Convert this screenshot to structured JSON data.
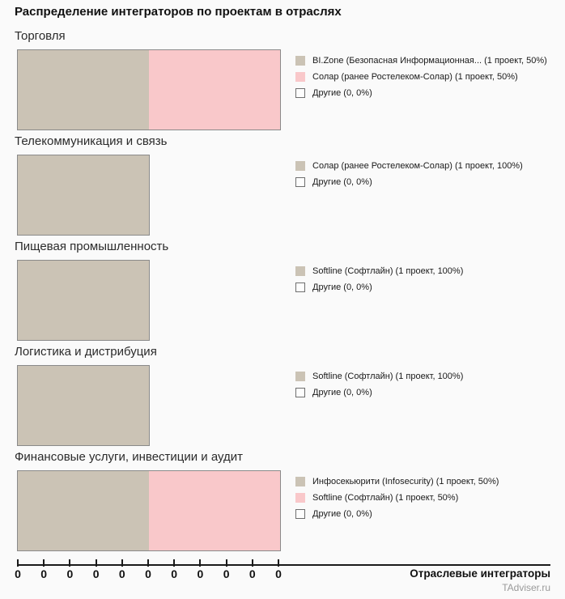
{
  "title": "Распределение интеграторов по проектам в отраслях",
  "axis": {
    "label": "Отраслевые интеграторы"
  },
  "watermark": "TAdviser.ru",
  "colors": {
    "tan": "#cbc3b5",
    "pink": "#f9c8ca",
    "other": "#fdfdfd",
    "bar_border": "#8a8a8a",
    "background": "#fafafa"
  },
  "chart_data": {
    "type": "bar",
    "orientation": "horizontal-stacked",
    "title": "Распределение интеграторов по проектам в отраслях",
    "xlabel": "Отраслевые интеграторы",
    "xlim": [
      0,
      2
    ],
    "x_tick_labels": [
      "0",
      "0",
      "0",
      "0",
      "0",
      "0",
      "0",
      "0",
      "0",
      "0",
      "0"
    ],
    "grid": false,
    "legend_position": "right-of-each-bar",
    "sections": [
      {
        "category": "Торговля",
        "segments": [
          {
            "name": "BI.Zone (Безопасная Информационная...",
            "projects": 1,
            "percent": 50,
            "color_key": "tan",
            "legend": "BI.Zone (Безопасная Информационная... (1 проект, 50%)"
          },
          {
            "name": "Солар (ранее Ростелеком-Солар)",
            "projects": 1,
            "percent": 50,
            "color_key": "pink",
            "legend": "Солар (ранее Ростелеком-Солар) (1 проект, 50%)"
          },
          {
            "name": "Другие",
            "projects": 0,
            "percent": 0,
            "color_key": "other",
            "legend": "Другие (0, 0%)"
          }
        ]
      },
      {
        "category": "Телекоммуникация и связь",
        "segments": [
          {
            "name": "Солар (ранее Ростелеком-Солар)",
            "projects": 1,
            "percent": 100,
            "color_key": "tan",
            "legend": "Солар (ранее Ростелеком-Солар) (1 проект, 100%)"
          },
          {
            "name": "Другие",
            "projects": 0,
            "percent": 0,
            "color_key": "other",
            "legend": "Другие (0, 0%)"
          }
        ]
      },
      {
        "category": "Пищевая промышленность",
        "segments": [
          {
            "name": "Softline (Софтлайн)",
            "projects": 1,
            "percent": 100,
            "color_key": "tan",
            "legend": "Softline (Софтлайн) (1 проект, 100%)"
          },
          {
            "name": "Другие",
            "projects": 0,
            "percent": 0,
            "color_key": "other",
            "legend": "Другие (0, 0%)"
          }
        ]
      },
      {
        "category": "Логистика и дистрибуция",
        "segments": [
          {
            "name": "Softline (Софтлайн)",
            "projects": 1,
            "percent": 100,
            "color_key": "tan",
            "legend": "Softline (Софтлайн) (1 проект, 100%)"
          },
          {
            "name": "Другие",
            "projects": 0,
            "percent": 0,
            "color_key": "other",
            "legend": "Другие (0, 0%)"
          }
        ]
      },
      {
        "category": "Финансовые услуги, инвестиции и аудит",
        "segments": [
          {
            "name": "Инфосекьюрити (Infosecurity)",
            "projects": 1,
            "percent": 50,
            "color_key": "tan",
            "legend": "Инфосекьюрити (Infosecurity) (1 проект, 50%)"
          },
          {
            "name": "Softline (Софтлайн)",
            "projects": 1,
            "percent": 50,
            "color_key": "pink",
            "legend": "Softline (Софтлайн) (1 проект, 50%)"
          },
          {
            "name": "Другие",
            "projects": 0,
            "percent": 0,
            "color_key": "other",
            "legend": "Другие (0, 0%)"
          }
        ]
      }
    ]
  }
}
